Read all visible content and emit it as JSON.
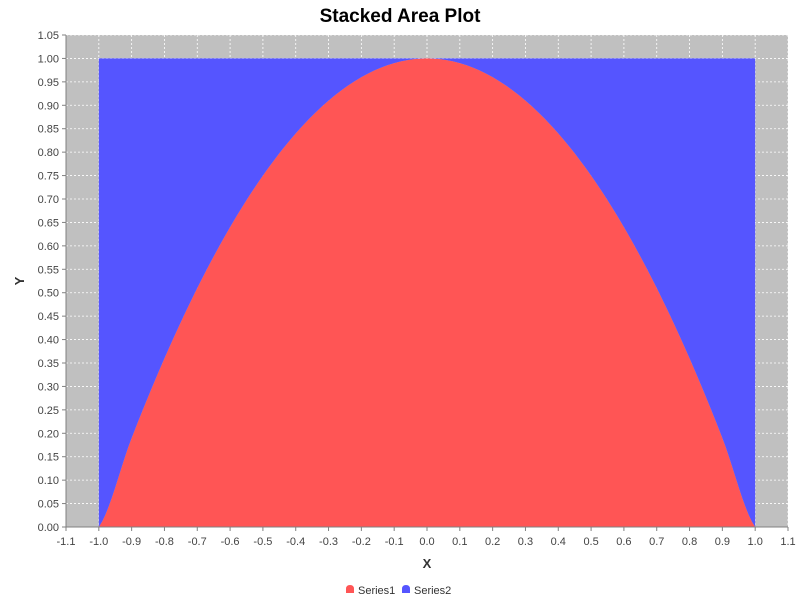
{
  "chart_data": {
    "type": "area",
    "stacked": true,
    "title": "Stacked Area Plot",
    "xlabel": "X",
    "ylabel": "Y",
    "xlim": [
      -1.1,
      1.1
    ],
    "ylim": [
      0.0,
      1.05
    ],
    "x_ticks": [
      "-1.1",
      "-1.0",
      "-0.9",
      "-0.8",
      "-0.7",
      "-0.6",
      "-0.5",
      "-0.4",
      "-0.3",
      "-0.2",
      "-0.1",
      "0.0",
      "0.1",
      "0.2",
      "0.3",
      "0.4",
      "0.5",
      "0.6",
      "0.7",
      "0.8",
      "0.9",
      "1.0",
      "1.1"
    ],
    "y_ticks": [
      "0.00",
      "0.05",
      "0.10",
      "0.15",
      "0.20",
      "0.25",
      "0.30",
      "0.35",
      "0.40",
      "0.45",
      "0.50",
      "0.55",
      "0.60",
      "0.65",
      "0.70",
      "0.75",
      "0.80",
      "0.85",
      "0.90",
      "0.95",
      "1.00",
      "1.05"
    ],
    "grid": true,
    "legend_position": "bottom",
    "plot_background": "#c0c0c0",
    "x": [
      -1.0,
      -0.9,
      -0.8,
      -0.7,
      -0.6,
      -0.5,
      -0.4,
      -0.3,
      -0.2,
      -0.1,
      0.0,
      0.1,
      0.2,
      0.3,
      0.4,
      0.5,
      0.6,
      0.7,
      0.8,
      0.9,
      1.0
    ],
    "series": [
      {
        "name": "Series1",
        "color": "#ff5555",
        "values": [
          0.0,
          0.19,
          0.36,
          0.51,
          0.64,
          0.75,
          0.84,
          0.91,
          0.96,
          0.99,
          1.0,
          0.99,
          0.96,
          0.91,
          0.84,
          0.75,
          0.64,
          0.51,
          0.36,
          0.19,
          0.0
        ]
      },
      {
        "name": "Series2",
        "color": "#5555ff",
        "values": [
          1.0,
          0.81,
          0.64,
          0.49,
          0.36,
          0.25,
          0.16,
          0.09,
          0.04,
          0.01,
          0.0,
          0.01,
          0.04,
          0.09,
          0.16,
          0.25,
          0.36,
          0.49,
          0.64,
          0.81,
          1.0
        ]
      }
    ]
  }
}
